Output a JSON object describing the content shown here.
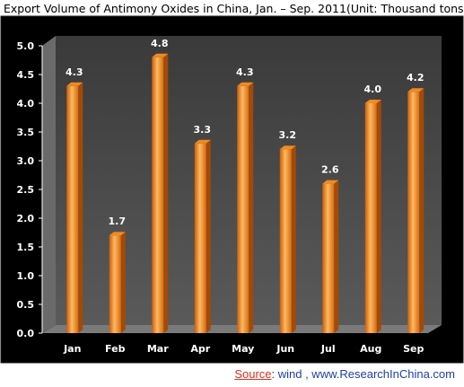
{
  "title": "Export Volume of Antimony Oxides in China, Jan. – Sep. 2011(Unit: Thousand tons)",
  "source": {
    "label": "Source",
    "text": ":  wind , www.ResearchInChina.com"
  },
  "colors": {
    "bar": "#f28a1e",
    "plot_back": "#4a4a4a",
    "frame": "#000000",
    "text": "#ffffff"
  },
  "chart_data": {
    "type": "bar",
    "title": "Export Volume of Antimony Oxides in China, Jan. – Sep. 2011(Unit: Thousand tons)",
    "categories": [
      "Jan",
      "Feb",
      "Mar",
      "Apr",
      "May",
      "Jun",
      "Jul",
      "Aug",
      "Sep"
    ],
    "values": [
      4.3,
      1.7,
      4.8,
      3.3,
      4.3,
      3.2,
      2.6,
      4.0,
      4.2
    ],
    "data_labels": [
      "4.3",
      "1.7",
      "4.8",
      "3.3",
      "4.3",
      "3.2",
      "2.6",
      "4.0",
      "4.2"
    ],
    "yticks": [
      "0.0",
      "0.5",
      "1.0",
      "1.5",
      "2.0",
      "2.5",
      "3.0",
      "3.5",
      "4.0",
      "4.5",
      "5.0"
    ],
    "ylim": [
      0,
      5
    ],
    "grid": false,
    "legend": "none",
    "xlabel": "",
    "ylabel": ""
  }
}
